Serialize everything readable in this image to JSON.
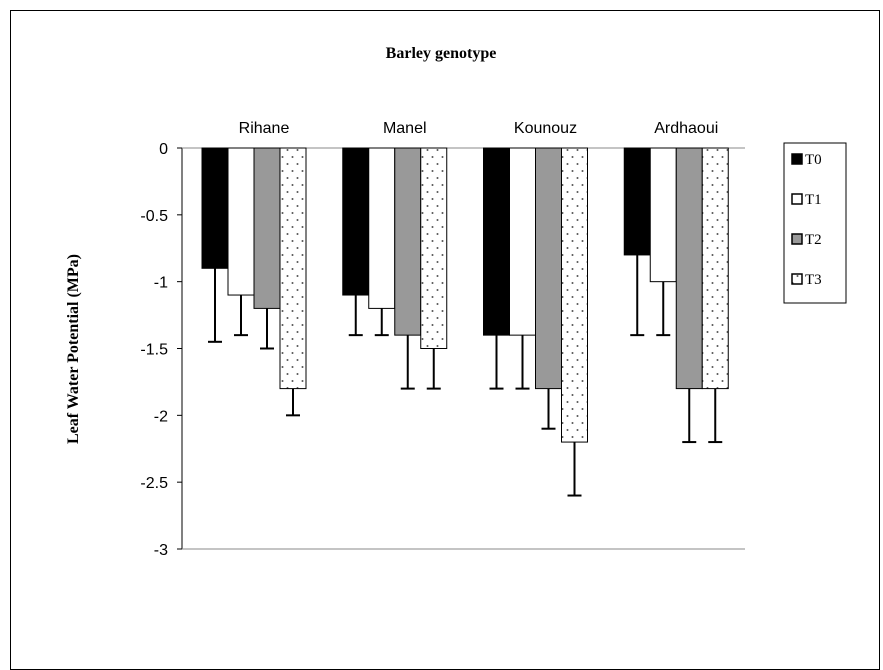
{
  "chart_data": {
    "type": "bar",
    "title": "Barley genotype",
    "ylabel": "Leaf Water Potential (MPa)",
    "xlabel": "",
    "categories": [
      "Rihane",
      "Manel",
      "Kounouz",
      "Ardhaoui"
    ],
    "ylim": [
      -3,
      0
    ],
    "yticks": [
      0,
      -0.5,
      -1,
      -1.5,
      -2,
      -2.5,
      -3
    ],
    "ytick_labels": [
      "0",
      "-0.5",
      "-1",
      "-1.5",
      "-2",
      "-2.5",
      "-3"
    ],
    "grid": false,
    "legend_position": "right",
    "series": [
      {
        "name": "T0",
        "values": [
          -0.9,
          -1.1,
          -1.4,
          -0.8
        ],
        "errors": [
          0.55,
          0.3,
          0.4,
          0.6
        ],
        "fill": "#000000",
        "pattern": "solid"
      },
      {
        "name": "T1",
        "values": [
          -1.1,
          -1.2,
          -1.4,
          -1.0
        ],
        "errors": [
          0.3,
          0.2,
          0.4,
          0.4
        ],
        "fill": "#ffffff",
        "pattern": "solid"
      },
      {
        "name": "T2",
        "values": [
          -1.2,
          -1.4,
          -1.8,
          -1.8
        ],
        "errors": [
          0.3,
          0.4,
          0.3,
          0.4
        ],
        "fill": "#999999",
        "pattern": "solid"
      },
      {
        "name": "T3",
        "values": [
          -1.8,
          -1.5,
          -2.2,
          -1.8
        ],
        "errors": [
          0.2,
          0.3,
          0.4,
          0.4
        ],
        "fill": "#ffffff",
        "pattern": "dots"
      }
    ]
  }
}
